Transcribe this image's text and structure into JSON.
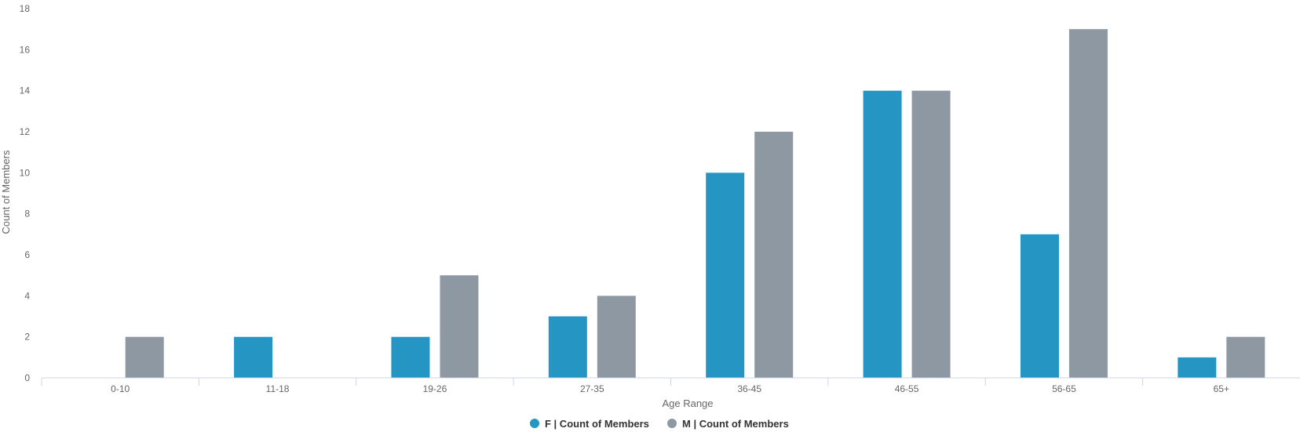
{
  "chart_data": {
    "type": "bar",
    "xlabel": "Age Range",
    "ylabel": "Count of Members",
    "ylim": [
      0,
      18
    ],
    "yticks": [
      0,
      2,
      4,
      6,
      8,
      10,
      12,
      14,
      16,
      18
    ],
    "categories": [
      "0-10",
      "11-18",
      "19-26",
      "27-35",
      "36-45",
      "46-55",
      "56-65",
      "65+"
    ],
    "series": [
      {
        "name": "F | Count of Members",
        "color": "#2596c4",
        "values": [
          0,
          2,
          2,
          3,
          10,
          14,
          7,
          1
        ]
      },
      {
        "name": "M | Count of Members",
        "color": "#8e98a3",
        "values": [
          2,
          0,
          5,
          4,
          12,
          14,
          17,
          2
        ]
      }
    ],
    "grid": false,
    "legend": "bottom-center"
  }
}
